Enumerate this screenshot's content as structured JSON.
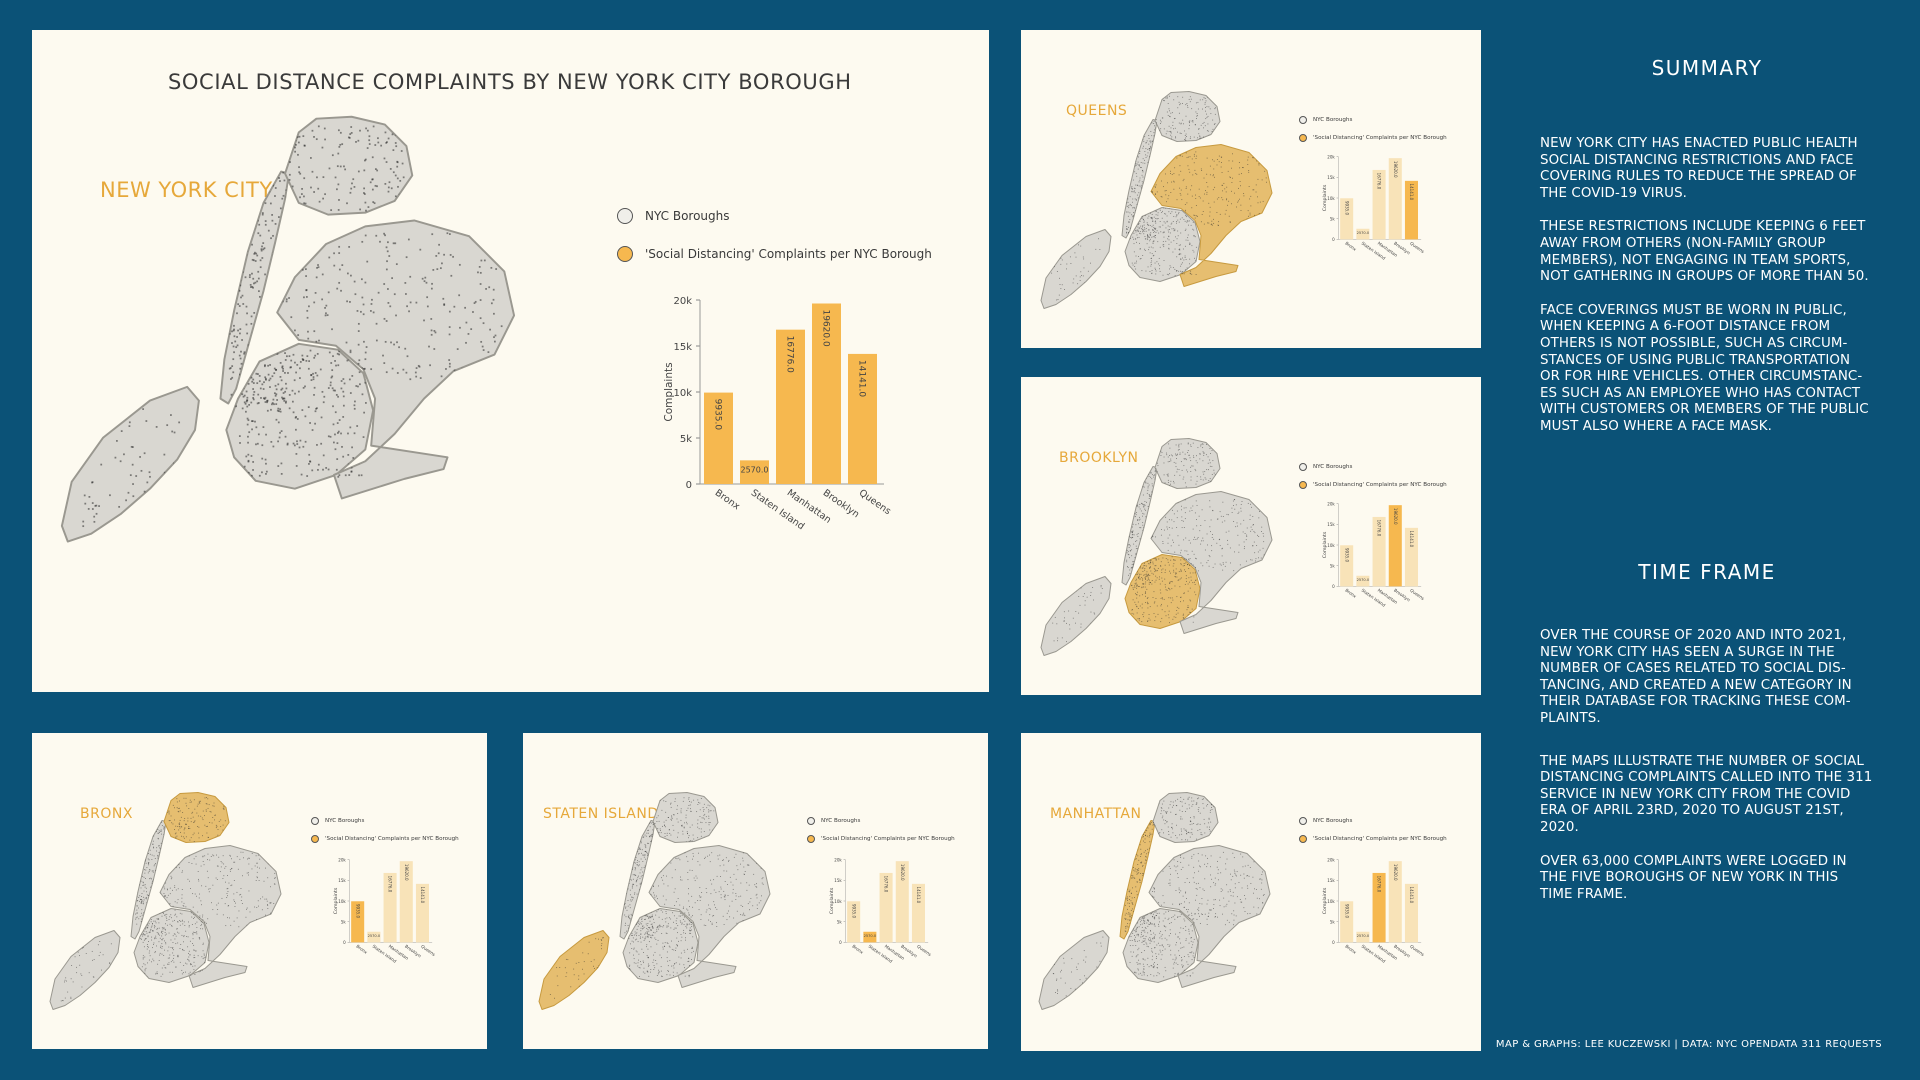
{
  "main": {
    "title": "SOCIAL DISTANCE COMPLAINTS BY NEW YORK CITY BOROUGH",
    "map_label": "NEW YORK CITY"
  },
  "legend": {
    "boroughs": "NYC Boroughs",
    "complaints": "'Social Distancing' Complaints per NYC Borough"
  },
  "panels": [
    {
      "label": "QUEENS",
      "highlight": "Queens"
    },
    {
      "label": "BROOKLYN",
      "highlight": "Brooklyn"
    },
    {
      "label": "BRONX",
      "highlight": "Bronx"
    },
    {
      "label": "STATEN ISLAND",
      "highlight": "Staten Island"
    },
    {
      "label": "MANHATTAN",
      "highlight": "Manhattan"
    }
  ],
  "chart_data": {
    "type": "bar",
    "categories": [
      "Bronx",
      "Staten Island",
      "Manhattan",
      "Brooklyn",
      "Queens"
    ],
    "values": [
      9935.0,
      2570.0,
      16776.0,
      19620.0,
      14141.0
    ],
    "data_labels": [
      "9935.0",
      "2570.0",
      "16776.0",
      "19620.0",
      "14141.0"
    ],
    "ylabel": "Complaints",
    "ylim": [
      0,
      20000
    ],
    "yticks": [
      0,
      5000,
      10000,
      15000,
      20000
    ],
    "ytick_labels": [
      "0",
      "5k",
      "10k",
      "15k",
      "20k"
    ],
    "bar_color": "#f6b84f",
    "faded_color": "#f8e3b8",
    "grid": false
  },
  "sidebar": {
    "summary_title": "SUMMARY",
    "summary_paragraphs": [
      "New York City has enacted public health social distancing restrictions and face covering rules to reduce the spread of the COVID-19 virus.",
      "These restrictions include keeping 6 feet away from others (non-family group members), not engaging in team sports, not gathering in groups of more than 50.",
      "Face coverings must be worn in public, when keeping a 6-foot distance from others is not possible, such as circum-stances of using public transportation or for hire vehicles. Other circumstanc-es such as an employee who has contact with customers or members of the public must also where a face mask."
    ],
    "timeframe_title": "TIME FRAME",
    "timeframe_paragraphs": [
      "Over the course of 2020 and into 2021, New York City has seen a surge in the number of cases related to social dis-tancing, and created a new category in their database for tracking these com-plaints.",
      "The maps illustrate the number of social distancing complaints called into the 311 service in New York City from the COVID era of April 23rd, 2020 to August 21st, 2020.",
      "Over 63,000 complaints were logged in the five boroughs of New York in this time frame."
    ]
  },
  "credit": "MAP & GRAPHS: LEE KUCZEWSKI | DATA: NYC OPENDATA 311 REQUESTS",
  "colors": {
    "background": "#0b5277",
    "panel": "#fdfaf0",
    "accent": "#e6a83a",
    "land": "#d9d7d1",
    "highlight_land": "#e6be70"
  }
}
